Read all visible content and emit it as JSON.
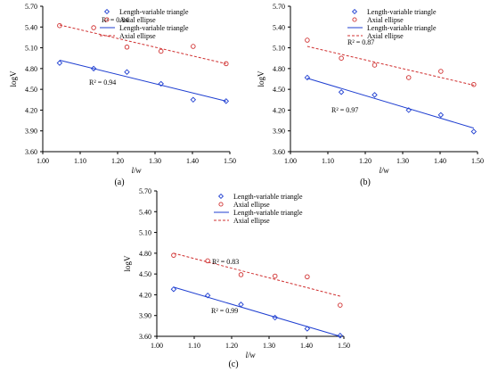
{
  "chart_data": [
    {
      "type": "scatter",
      "panel_label": "(a)",
      "xlabel": "l/w",
      "ylabel": "logV",
      "xlim": [
        1.0,
        1.5
      ],
      "ylim": [
        3.6,
        5.7
      ],
      "xticks": [
        "1.00",
        "1.10",
        "1.20",
        "1.30",
        "1.40",
        "1.50"
      ],
      "yticks": [
        "3.60",
        "3.90",
        "4.20",
        "4.50",
        "4.80",
        "5.10",
        "5.40",
        "5.70"
      ],
      "legend_position": "top-right",
      "legend": [
        "Length-variable triangle",
        "Axial ellipse",
        "Length-variable triangle",
        "Axial ellipse"
      ],
      "series": [
        {
          "name": "Length-variable triangle",
          "marker": "diamond",
          "color": "#1f3fd1",
          "x": [
            1.045,
            1.136,
            1.225,
            1.316,
            1.402,
            1.49
          ],
          "y": [
            4.88,
            4.8,
            4.75,
            4.58,
            4.35,
            4.33
          ]
        },
        {
          "name": "Axial ellipse",
          "marker": "circle",
          "color": "#d03030",
          "x": [
            1.045,
            1.136,
            1.225,
            1.316,
            1.402,
            1.49
          ],
          "y": [
            5.42,
            5.39,
            5.11,
            5.05,
            5.12,
            4.87
          ]
        }
      ],
      "fits": [
        {
          "name": "Length-variable triangle",
          "style": "solid",
          "color": "#1f3fd1",
          "x": [
            1.045,
            1.49
          ],
          "y": [
            4.92,
            4.33
          ],
          "r2": "R² = 0.94"
        },
        {
          "name": "Axial ellipse",
          "style": "dashed",
          "color": "#d03030",
          "x": [
            1.045,
            1.49
          ],
          "y": [
            5.43,
            4.87
          ],
          "r2": "R² = 0.84"
        }
      ]
    },
    {
      "type": "scatter",
      "panel_label": "(b)",
      "xlabel": "l/w",
      "ylabel": "logV",
      "xlim": [
        1.0,
        1.5
      ],
      "ylim": [
        3.6,
        5.7
      ],
      "xticks": [
        "1.00",
        "1.10",
        "1.20",
        "1.30",
        "1.40",
        "1.50"
      ],
      "yticks": [
        "3.60",
        "3.90",
        "4.20",
        "4.50",
        "4.80",
        "5.10",
        "5.40",
        "5.70"
      ],
      "legend_position": "top-right",
      "legend": [
        "Length-variable triangle",
        "Axial ellipse",
        "Length-variable triangle",
        "Axial ellipse"
      ],
      "series": [
        {
          "name": "Length-variable triangle",
          "marker": "diamond",
          "color": "#1f3fd1",
          "x": [
            1.045,
            1.136,
            1.225,
            1.316,
            1.402,
            1.49
          ],
          "y": [
            4.67,
            4.46,
            4.42,
            4.2,
            4.13,
            3.89
          ]
        },
        {
          "name": "Axial ellipse",
          "marker": "circle",
          "color": "#d03030",
          "x": [
            1.045,
            1.136,
            1.225,
            1.316,
            1.402,
            1.49
          ],
          "y": [
            5.21,
            4.95,
            4.85,
            4.67,
            4.76,
            4.57
          ]
        }
      ],
      "fits": [
        {
          "name": "Length-variable triangle",
          "style": "solid",
          "color": "#1f3fd1",
          "x": [
            1.045,
            1.49
          ],
          "y": [
            4.66,
            3.94
          ],
          "r2": "R² = 0.97"
        },
        {
          "name": "Axial ellipse",
          "style": "dashed",
          "color": "#d03030",
          "x": [
            1.045,
            1.49
          ],
          "y": [
            5.12,
            4.56
          ],
          "r2": "R² = 0.87"
        }
      ]
    },
    {
      "type": "scatter",
      "panel_label": "(c)",
      "xlabel": "l/w",
      "ylabel": "logV",
      "xlim": [
        1.0,
        1.5
      ],
      "ylim": [
        3.6,
        5.7
      ],
      "xticks": [
        "1.00",
        "1.10",
        "1.20",
        "1.30",
        "1.40",
        "1.50"
      ],
      "yticks": [
        "3.60",
        "3.90",
        "4.20",
        "4.50",
        "4.80",
        "5.10",
        "5.40",
        "5.70"
      ],
      "legend_position": "top-right",
      "legend": [
        "Length-variable triangle",
        "Axial ellipse",
        "Length-variable triangle",
        "Axial ellipse"
      ],
      "series": [
        {
          "name": "Length-variable triangle",
          "marker": "diamond",
          "color": "#1f3fd1",
          "x": [
            1.045,
            1.136,
            1.225,
            1.316,
            1.402,
            1.49
          ],
          "y": [
            4.28,
            4.19,
            4.06,
            3.87,
            3.71,
            3.61
          ]
        },
        {
          "name": "Axial ellipse",
          "marker": "circle",
          "color": "#d03030",
          "x": [
            1.045,
            1.136,
            1.225,
            1.316,
            1.402,
            1.49
          ],
          "y": [
            4.77,
            4.69,
            4.49,
            4.47,
            4.46,
            4.05
          ]
        }
      ],
      "fits": [
        {
          "name": "Length-variable triangle",
          "style": "solid",
          "color": "#1f3fd1",
          "x": [
            1.045,
            1.49
          ],
          "y": [
            4.31,
            3.6
          ],
          "r2": "R² = 0.99"
        },
        {
          "name": "Axial ellipse",
          "style": "dashed",
          "color": "#d03030",
          "x": [
            1.045,
            1.49
          ],
          "y": [
            4.8,
            4.18
          ],
          "r2": "R² = 0.83"
        }
      ]
    }
  ]
}
